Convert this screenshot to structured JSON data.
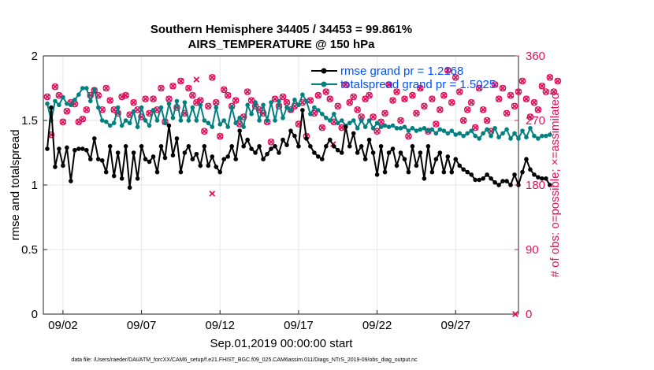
{
  "chart_data": {
    "type": "line",
    "title_line1": "Southern Hemisphere 34405 / 34453 = 99.861%",
    "title_line2": "AIRS_TEMPERATURE @ 150 hPa",
    "xlabel": "Sep.01,2019 00:00:00 start",
    "ylabel_left": "rmse and totalspread",
    "ylabel_right": "# of obs: o=possible; ×=assimilated",
    "x_ticks": [
      {
        "day": 2,
        "label": "09/02"
      },
      {
        "day": 7,
        "label": "09/07"
      },
      {
        "day": 12,
        "label": "09/12"
      },
      {
        "day": 17,
        "label": "09/17"
      },
      {
        "day": 22,
        "label": "09/22"
      },
      {
        "day": 27,
        "label": "09/27"
      }
    ],
    "xlim": [
      0.75,
      31
    ],
    "ylim_left": [
      0,
      2
    ],
    "ylim_right": [
      0,
      360
    ],
    "left_ticks": [
      "0",
      "0.5",
      "1",
      "1.5",
      "2"
    ],
    "right_ticks": [
      "0",
      "90",
      "180",
      "270",
      "360"
    ],
    "grid": true,
    "legend_position": "top-right",
    "series": [
      {
        "name": "rmse grand pr = 1.2168",
        "color": "#000000",
        "axis": "left",
        "x_start": 1,
        "x_step": 0.25,
        "values": [
          1.28,
          1.6,
          1.14,
          1.28,
          1.15,
          1.29,
          1.03,
          1.27,
          1.28,
          1.28,
          1.27,
          1.2,
          1.36,
          1.2,
          1.19,
          1.1,
          1.3,
          1.07,
          1.25,
          1.05,
          1.3,
          0.98,
          1.25,
          1.05,
          1.3,
          1.2,
          1.18,
          1.22,
          1.1,
          1.3,
          1.21,
          1.46,
          1.23,
          1.36,
          1.1,
          1.25,
          1.3,
          1.2,
          1.24,
          1.15,
          1.3,
          1.15,
          1.22,
          1.14,
          1.1,
          1.2,
          1.22,
          1.3,
          1.2,
          1.42,
          1.3,
          1.35,
          1.28,
          1.25,
          1.3,
          1.2,
          1.24,
          1.28,
          1.3,
          1.25,
          1.35,
          1.31,
          1.42,
          1.38,
          1.3,
          1.58,
          1.36,
          1.3,
          1.25,
          1.22,
          1.2,
          1.3,
          1.35,
          1.3,
          1.27,
          1.25,
          1.45,
          1.3,
          1.4,
          1.25,
          1.3,
          1.2,
          1.35,
          1.25,
          1.08,
          1.3,
          1.1,
          1.25,
          1.28,
          1.15,
          1.25,
          1.2,
          1.1,
          1.3,
          1.15,
          1.25,
          1.05,
          1.3,
          1.1,
          1.2,
          1.25,
          1.1,
          1.22,
          1.1,
          1.2,
          1.15,
          1.12,
          1.1,
          1.08,
          1.04,
          1.04,
          1.05,
          1.08,
          1.05,
          1.02,
          1.0,
          1.03,
          1.03,
          1.0,
          1.08,
          1.0,
          1.1,
          1.2,
          1.12,
          1.08,
          1.06,
          1.05,
          1.05,
          1.0
        ]
      },
      {
        "name": "totalspread grand pr = 1.5025",
        "color": "#008080",
        "axis": "left",
        "x_start": 1,
        "x_step": 0.25,
        "values": [
          1.63,
          1.5,
          1.65,
          1.62,
          1.68,
          1.63,
          1.62,
          1.66,
          1.7,
          1.75,
          1.75,
          1.65,
          1.74,
          1.6,
          1.5,
          1.49,
          1.46,
          1.48,
          1.6,
          1.46,
          1.5,
          1.48,
          1.57,
          1.45,
          1.6,
          1.5,
          1.46,
          1.58,
          1.5,
          1.6,
          1.48,
          1.63,
          1.52,
          1.65,
          1.5,
          1.64,
          1.5,
          1.6,
          1.5,
          1.62,
          1.5,
          1.48,
          1.45,
          1.6,
          1.47,
          1.5,
          1.45,
          1.6,
          1.48,
          1.52,
          1.45,
          1.62,
          1.55,
          1.64,
          1.5,
          1.62,
          1.5,
          1.64,
          1.5,
          1.65,
          1.52,
          1.6,
          1.58,
          1.66,
          1.62,
          1.7,
          1.65,
          1.55,
          1.6,
          1.58,
          1.55,
          1.52,
          1.5,
          1.55,
          1.48,
          1.5,
          1.46,
          1.48,
          1.5,
          1.44,
          1.5,
          1.45,
          1.5,
          1.44,
          1.48,
          1.45,
          1.46,
          1.45,
          1.46,
          1.44,
          1.44,
          1.45,
          1.42,
          1.44,
          1.42,
          1.43,
          1.44,
          1.42,
          1.43,
          1.4,
          1.43,
          1.42,
          1.4,
          1.42,
          1.39,
          1.4,
          1.38,
          1.4,
          1.42,
          1.38,
          1.36,
          1.4,
          1.43,
          1.38,
          1.44,
          1.37,
          1.4,
          1.43,
          1.36,
          1.4,
          1.36,
          1.42,
          1.37,
          1.44,
          1.38,
          1.36,
          1.38,
          1.38,
          1.39
        ]
      },
      {
        "name": "obs possible",
        "color": "#e0105a",
        "axis": "right",
        "marker": "o",
        "x_start": 1,
        "x_step": 0.25,
        "values": [
          303,
          250,
          317,
          305,
          268,
          283,
          295,
          293,
          268,
          272,
          285,
          305,
          312,
          305,
          285,
          315,
          298,
          285,
          280,
          303,
          305,
          278,
          295,
          285,
          275,
          300,
          280,
          300,
          285,
          315,
          268,
          300,
          318,
          288,
          325,
          280,
          315,
          305,
          295,
          298,
          255,
          290,
          330,
          295,
          248,
          313,
          305,
          290,
          298,
          265,
          275,
          310,
          298,
          290,
          285,
          280,
          268,
          240,
          300,
          290,
          303,
          295,
          285,
          290,
          265,
          295,
          248,
          298,
          280,
          305,
          260,
          310,
          300,
          268,
          290,
          260,
          320,
          295,
          303,
          285,
          275,
          300,
          305,
          275,
          255,
          268,
          280,
          320,
          298,
          310,
          270,
          300,
          248,
          305,
          280,
          315,
          290,
          255,
          300,
          265,
          285,
          305,
          340,
          295,
          330,
          310,
          270,
          285,
          295,
          260,
          315,
          285,
          270,
          255,
          320,
          300,
          315,
          280,
          305,
          290,
          310,
          325,
          300,
          275,
          295,
          285,
          318,
          310,
          330,
          310,
          325
        ]
      },
      {
        "name": "obs assimilated",
        "color": "#e0105a",
        "axis": "right",
        "marker": "x",
        "x_start": 1,
        "x_step": 0.25,
        "values": [
          303,
          250,
          317,
          305,
          268,
          283,
          295,
          293,
          268,
          272,
          285,
          305,
          312,
          305,
          285,
          315,
          298,
          285,
          280,
          303,
          305,
          278,
          295,
          285,
          275,
          300,
          280,
          300,
          285,
          315,
          268,
          300,
          318,
          288,
          325,
          280,
          315,
          305,
          295,
          298,
          255,
          290,
          330,
          295,
          248,
          313,
          305,
          290,
          298,
          265,
          275,
          310,
          298,
          290,
          285,
          280,
          268,
          240,
          300,
          290,
          303,
          295,
          285,
          290,
          265,
          295,
          248,
          298,
          280,
          305,
          260,
          310,
          300,
          268,
          290,
          260,
          320,
          295,
          303,
          285,
          275,
          300,
          305,
          275,
          255,
          268,
          280,
          320,
          298,
          310,
          270,
          300,
          248,
          305,
          280,
          315,
          290,
          255,
          300,
          265,
          285,
          305,
          340,
          295,
          330,
          310,
          270,
          285,
          295,
          260,
          315,
          285,
          270,
          255,
          320,
          300,
          315,
          280,
          305,
          290,
          310,
          325,
          300,
          275,
          295,
          285,
          318,
          310,
          330,
          310,
          325
        ],
        "extra_points": [
          {
            "x": 11.5,
            "y": 168
          },
          {
            "x": 10.5,
            "y": 327
          },
          {
            "x": 19.2,
            "y": 237
          },
          {
            "x": 30.8,
            "y": 0
          }
        ]
      }
    ],
    "footer": "data file: /Users/raeder/DAI/ATM_forcXX/CAM6_setup/f.e21.FHIST_BGC.f09_025.CAM6assim.011/Diags_NTrS_2019-09/obs_diag_output.nc"
  }
}
